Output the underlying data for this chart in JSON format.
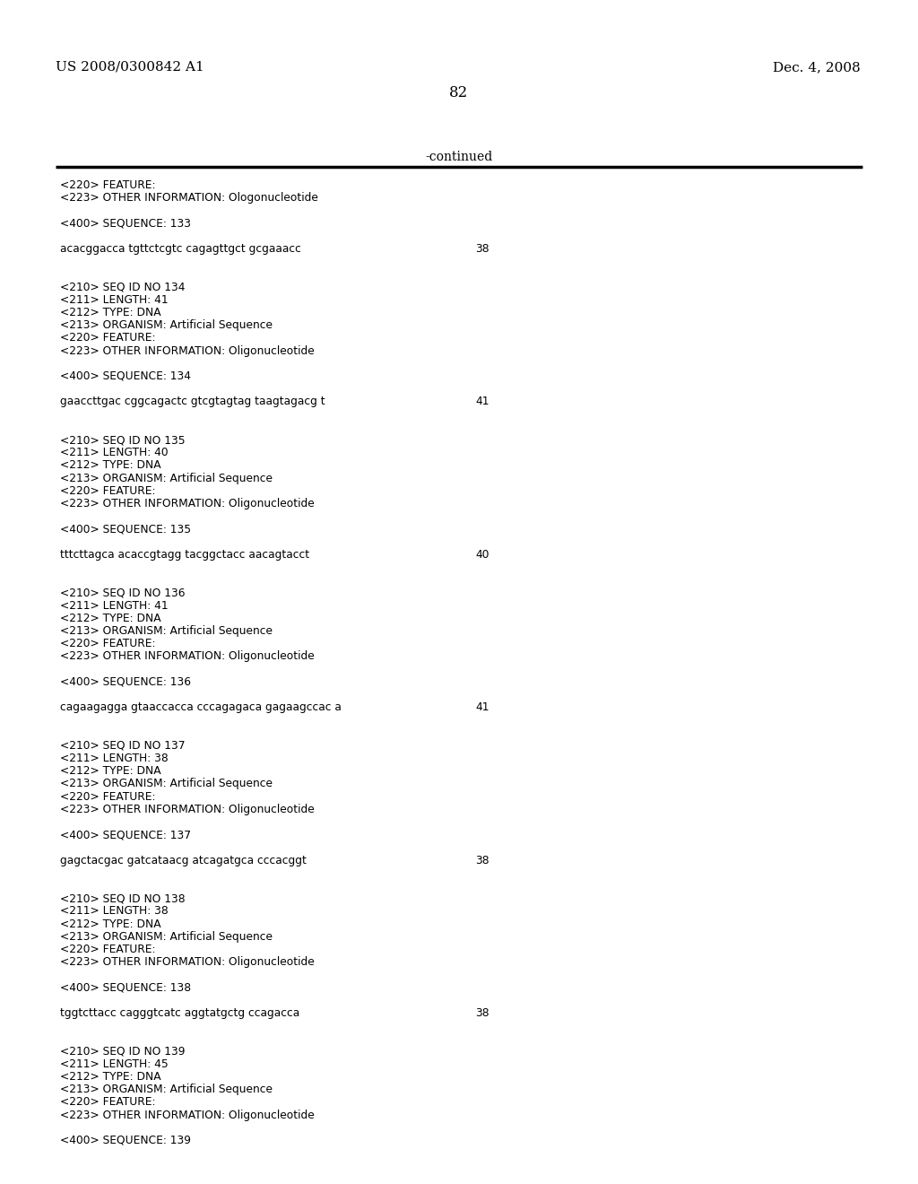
{
  "header_left": "US 2008/0300842 A1",
  "header_right": "Dec. 4, 2008",
  "page_number": "82",
  "continued_text": "-continued",
  "background_color": "#ffffff",
  "text_color": "#000000",
  "content_lines": [
    "<220> FEATURE:",
    "<223> OTHER INFORMATION: Ologonucleotide",
    "",
    "<400> SEQUENCE: 133",
    "",
    "SEQ:acacggacca tgttctcgtc cagagttgct gcgaaacc|38",
    "",
    "",
    "<210> SEQ ID NO 134",
    "<211> LENGTH: 41",
    "<212> TYPE: DNA",
    "<213> ORGANISM: Artificial Sequence",
    "<220> FEATURE:",
    "<223> OTHER INFORMATION: Oligonucleotide",
    "",
    "<400> SEQUENCE: 134",
    "",
    "SEQ:gaaccttgac cggcagactc gtcgtagtag taagtagacg t|41",
    "",
    "",
    "<210> SEQ ID NO 135",
    "<211> LENGTH: 40",
    "<212> TYPE: DNA",
    "<213> ORGANISM: Artificial Sequence",
    "<220> FEATURE:",
    "<223> OTHER INFORMATION: Oligonucleotide",
    "",
    "<400> SEQUENCE: 135",
    "",
    "SEQ:tttcttagca acaccgtagg tacggctacc aacagtacct|40",
    "",
    "",
    "<210> SEQ ID NO 136",
    "<211> LENGTH: 41",
    "<212> TYPE: DNA",
    "<213> ORGANISM: Artificial Sequence",
    "<220> FEATURE:",
    "<223> OTHER INFORMATION: Oligonucleotide",
    "",
    "<400> SEQUENCE: 136",
    "",
    "SEQ:cagaagagga gtaaccacca cccagagaca gagaagccac a|41",
    "",
    "",
    "<210> SEQ ID NO 137",
    "<211> LENGTH: 38",
    "<212> TYPE: DNA",
    "<213> ORGANISM: Artificial Sequence",
    "<220> FEATURE:",
    "<223> OTHER INFORMATION: Oligonucleotide",
    "",
    "<400> SEQUENCE: 137",
    "",
    "SEQ:gagctacgac gatcataacg atcagatgca cccacggt|38",
    "",
    "",
    "<210> SEQ ID NO 138",
    "<211> LENGTH: 38",
    "<212> TYPE: DNA",
    "<213> ORGANISM: Artificial Sequence",
    "<220> FEATURE:",
    "<223> OTHER INFORMATION: Oligonucleotide",
    "",
    "<400> SEQUENCE: 138",
    "",
    "SEQ:tggtcttacc cagggtcatc aggtatgctg ccagacca|38",
    "",
    "",
    "<210> SEQ ID NO 139",
    "<211> LENGTH: 45",
    "<212> TYPE: DNA",
    "<213> ORGANISM: Artificial Sequence",
    "<220> FEATURE:",
    "<223> OTHER INFORMATION: Oligonucleotide",
    "",
    "<400> SEQUENCE: 139"
  ]
}
